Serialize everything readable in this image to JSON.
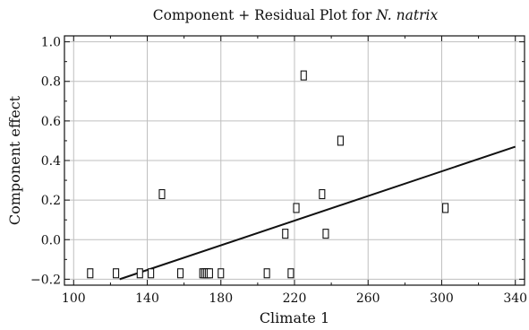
{
  "chart_data": {
    "type": "scatter",
    "title_prefix": "Component + Residual Plot for ",
    "title_species": "N. natrix",
    "xlabel": "Climate 1",
    "ylabel": "Component effect",
    "xlim": [
      95,
      345
    ],
    "ylim": [
      -0.23,
      1.03
    ],
    "xticks": [
      100,
      140,
      180,
      220,
      260,
      300,
      340
    ],
    "yticks": [
      -0.2,
      0.0,
      0.2,
      0.4,
      0.6,
      0.8,
      1.0
    ],
    "xtick_labels": [
      "100",
      "140",
      "180",
      "220",
      "260",
      "300",
      "340"
    ],
    "ytick_labels": [
      "−0.2",
      "0.0",
      "0.2",
      "0.4",
      "0.6",
      "0.8",
      "1.0"
    ],
    "grid": true,
    "marker": "open-square",
    "points": [
      {
        "x": 109,
        "y": -0.17
      },
      {
        "x": 123,
        "y": -0.17
      },
      {
        "x": 136,
        "y": -0.17
      },
      {
        "x": 142,
        "y": -0.17
      },
      {
        "x": 148,
        "y": 0.23
      },
      {
        "x": 158,
        "y": -0.17
      },
      {
        "x": 170,
        "y": -0.17
      },
      {
        "x": 171,
        "y": -0.17
      },
      {
        "x": 172,
        "y": -0.17
      },
      {
        "x": 173,
        "y": -0.17
      },
      {
        "x": 174,
        "y": -0.17
      },
      {
        "x": 180,
        "y": -0.17
      },
      {
        "x": 205,
        "y": -0.17
      },
      {
        "x": 215,
        "y": 0.03
      },
      {
        "x": 218,
        "y": -0.17
      },
      {
        "x": 221,
        "y": 0.16
      },
      {
        "x": 225,
        "y": 0.83
      },
      {
        "x": 235,
        "y": 0.23
      },
      {
        "x": 237,
        "y": 0.03
      },
      {
        "x": 245,
        "y": 0.5
      },
      {
        "x": 302,
        "y": 0.16
      }
    ],
    "fit_line": {
      "x": [
        125,
        340
      ],
      "y": [
        -0.2,
        0.47
      ]
    },
    "colors": {
      "axis": "#111111",
      "grid": "#bfbfbf",
      "marker": "#111111",
      "line": "#111111"
    }
  }
}
